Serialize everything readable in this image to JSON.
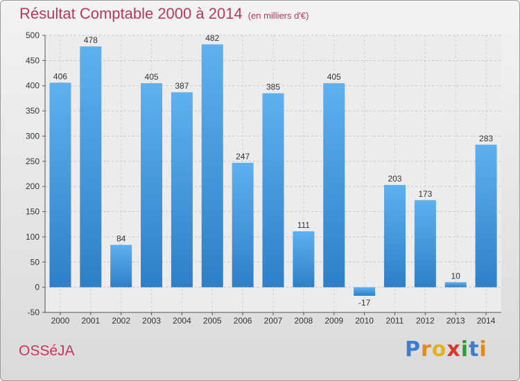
{
  "header": {
    "title": "Résultat Comptable 2000 à 2014",
    "subtitle": "(en milliers d'€)"
  },
  "footer": {
    "town": "OSSéJA",
    "logo_letters": [
      "P",
      "r",
      "o",
      "x",
      "i",
      "t",
      "i"
    ]
  },
  "colors": {
    "title": "#b8385a",
    "bar": "#3d8fd6",
    "logo": [
      "#3a7ecf",
      "#e28b1d",
      "#e5b21c",
      "#d8372a",
      "#2c9b3d",
      "#3a7ecf",
      "#e28b1d"
    ]
  },
  "chart_data": {
    "type": "bar",
    "categories": [
      "2000",
      "2001",
      "2002",
      "2003",
      "2004",
      "2005",
      "2006",
      "2007",
      "2008",
      "2009",
      "2010",
      "2011",
      "2012",
      "2013",
      "2014"
    ],
    "values": [
      406,
      478,
      84,
      405,
      387,
      482,
      247,
      385,
      111,
      405,
      -17,
      203,
      173,
      10,
      283
    ],
    "title": "Résultat Comptable 2000 à 2014",
    "ylim": [
      -50,
      500
    ],
    "yticks": [
      -50,
      0,
      50,
      100,
      150,
      200,
      250,
      300,
      350,
      400,
      450,
      500
    ],
    "grid": true,
    "legend": "none"
  }
}
